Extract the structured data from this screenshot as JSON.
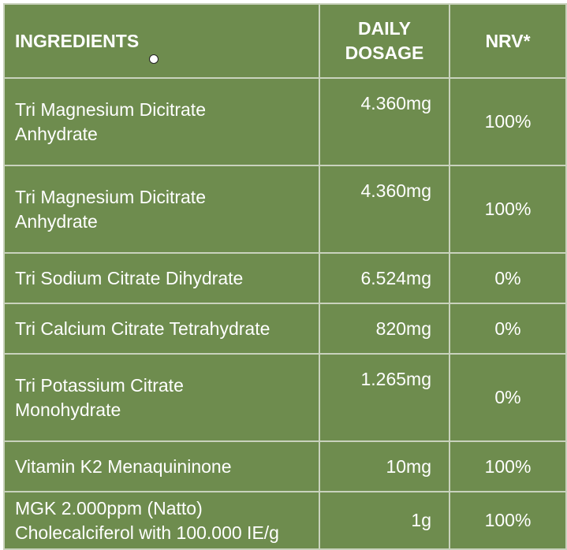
{
  "table": {
    "header": [
      "INGREDIENTS",
      "DAILY\nDOSAGE",
      "NRV*"
    ],
    "rows": [
      [
        "Tri Magnesium Dicitrate\nAnhydrate",
        "4.360mg",
        "100%"
      ],
      [
        "Tri Magnesium Dicitrate\nAnhydrate",
        "4.360mg",
        "100%"
      ],
      [
        "Tri Sodium Citrate Dihydrate",
        "6.524mg",
        "0%"
      ],
      [
        "Tri Calcium Citrate Tetrahydrate",
        "820mg",
        "0%"
      ],
      [
        "Tri Potassium Citrate\nMonohydrate",
        "1.265mg",
        "0%"
      ],
      [
        "Vitamin K2 Menaquininone",
        "10mg",
        "100%"
      ],
      [
        "MGK 2.000ppm (Natto)\nCholecalciferol with 100.000 IE/g",
        "1g",
        "100%"
      ]
    ]
  }
}
